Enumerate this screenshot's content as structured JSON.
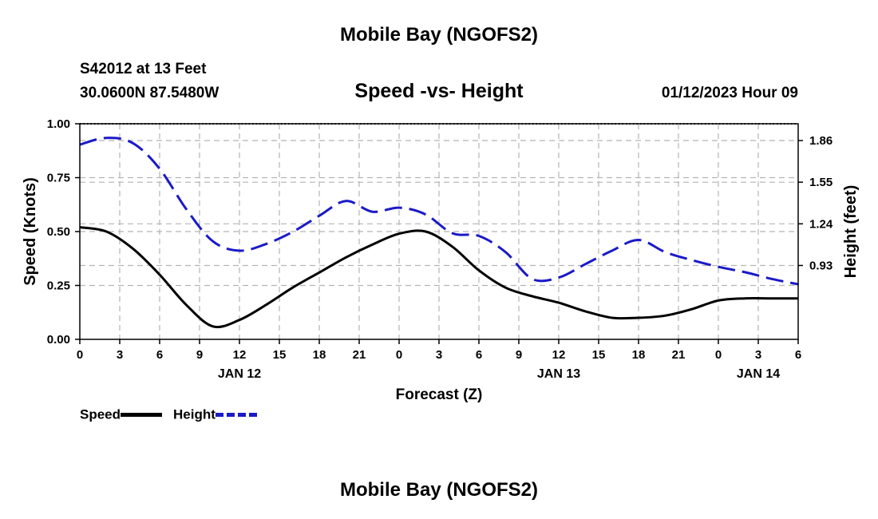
{
  "header": {
    "title": "Mobile Bay (NGOFS2)",
    "station": "S42012 at 13 Feet",
    "coordinates": "30.0600N  87.5480W",
    "subtitle": "Speed -vs- Height",
    "timestamp": "01/12/2023 Hour 09"
  },
  "footer": {
    "title": "Mobile Bay (NGOFS2)"
  },
  "legend": {
    "speed_label": "Speed",
    "height_label": "Height"
  },
  "colors": {
    "speed": "#000000",
    "height": "#1a1ac8",
    "grid": "#b4b4b4"
  },
  "chart_data": {
    "type": "line",
    "xlabel": "Forecast (Z)",
    "ylabel_left": "Speed (Knots)",
    "ylabel_right": "Height (feet)",
    "x_unit": "hours from 2023-01-12 00Z",
    "xlim": [
      -12,
      42
    ],
    "x_ticks": [
      -12,
      -9,
      -6,
      -3,
      0,
      3,
      6,
      9,
      12,
      15,
      18,
      21,
      24,
      27,
      30,
      33,
      36,
      39,
      42
    ],
    "x_tick_labels": [
      "0",
      "3",
      "6",
      "9",
      "12",
      "15",
      "18",
      "21",
      "0",
      "3",
      "6",
      "9",
      "12",
      "15",
      "18",
      "21",
      "0",
      "3",
      "6"
    ],
    "date_labels": [
      {
        "x": 0,
        "label": "JAN 12"
      },
      {
        "x": 24,
        "label": "JAN 13"
      },
      {
        "x": 48,
        "label": "JAN 14"
      }
    ],
    "ylim_left": [
      0,
      1.0
    ],
    "y_ticks_left": [
      0,
      0.25,
      0.5,
      0.75,
      1.0
    ],
    "y_tick_labels_left": [
      "0.00",
      "0.25",
      "0.50",
      "0.75",
      "1.00"
    ],
    "ylim_right": [
      0.38,
      1.985
    ],
    "y_ticks_right": [
      0.93,
      1.24,
      1.55,
      1.86
    ],
    "y_tick_labels_right": [
      "0.93",
      "1.24",
      "1.55",
      "1.86"
    ],
    "series": [
      {
        "name": "Speed",
        "axis": "left",
        "x": [
          -12,
          -10,
          -8,
          -6,
          -4,
          -2,
          0,
          2,
          4,
          6,
          8,
          10,
          12,
          14,
          16,
          18,
          20,
          22,
          24,
          26,
          28,
          30,
          32,
          34,
          36,
          38,
          40,
          42
        ],
        "values": [
          0.52,
          0.5,
          0.42,
          0.3,
          0.16,
          0.06,
          0.09,
          0.16,
          0.24,
          0.31,
          0.38,
          0.44,
          0.49,
          0.5,
          0.43,
          0.32,
          0.24,
          0.2,
          0.17,
          0.13,
          0.1,
          0.1,
          0.11,
          0.14,
          0.18,
          0.19,
          0.19,
          0.19
        ]
      },
      {
        "name": "Height",
        "axis": "right",
        "x": [
          -12,
          -10,
          -8,
          -6,
          -4,
          -2,
          0,
          2,
          4,
          6,
          8,
          10,
          12,
          14,
          16,
          18,
          20,
          22,
          24,
          26,
          28,
          30,
          32,
          34,
          36,
          38,
          40,
          42
        ],
        "values": [
          1.83,
          1.88,
          1.84,
          1.65,
          1.35,
          1.11,
          1.04,
          1.09,
          1.18,
          1.3,
          1.41,
          1.33,
          1.36,
          1.31,
          1.17,
          1.15,
          1.03,
          0.83,
          0.84,
          0.94,
          1.04,
          1.12,
          1.03,
          0.97,
          0.92,
          0.88,
          0.83,
          0.79
        ]
      }
    ]
  }
}
